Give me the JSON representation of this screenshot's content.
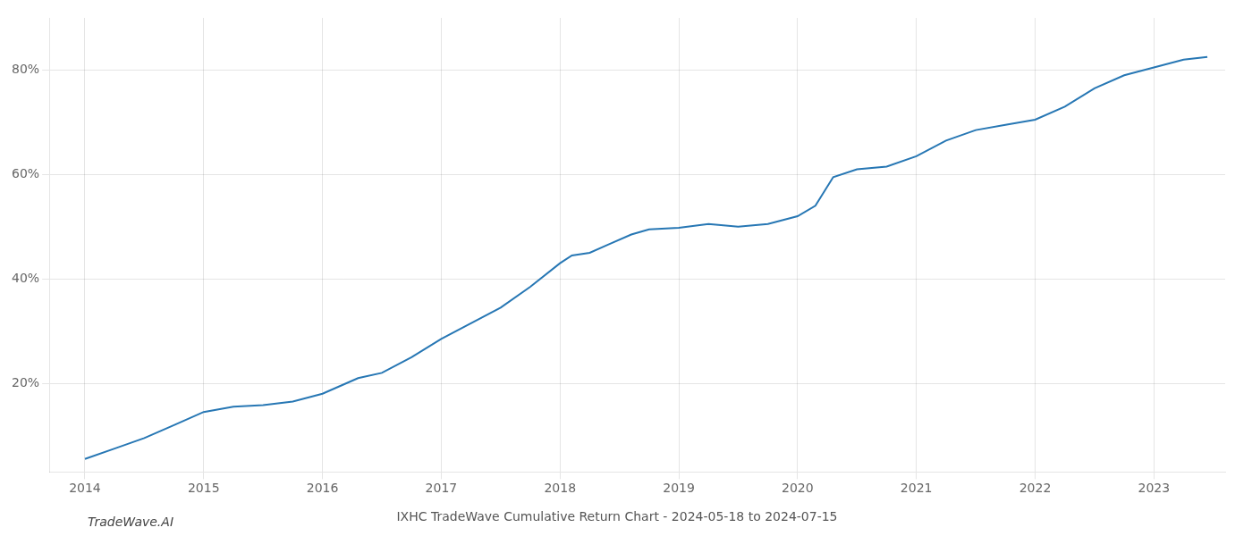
{
  "chart_data": {
    "type": "line",
    "title": "IXHC TradeWave Cumulative Return Chart - 2024-05-18 to 2024-07-15",
    "annotations": [
      "TradeWave.AI"
    ],
    "color": "#2777b4",
    "grid": true,
    "x": [
      2014.0,
      2014.25,
      2014.5,
      2014.75,
      2015.0,
      2015.25,
      2015.5,
      2015.75,
      2016.0,
      2016.15,
      2016.3,
      2016.5,
      2016.75,
      2017.0,
      2017.25,
      2017.5,
      2017.75,
      2018.0,
      2018.1,
      2018.25,
      2018.4,
      2018.6,
      2018.75,
      2019.0,
      2019.25,
      2019.5,
      2019.75,
      2020.0,
      2020.15,
      2020.3,
      2020.5,
      2020.75,
      2021.0,
      2021.25,
      2021.5,
      2021.75,
      2022.0,
      2022.25,
      2022.5,
      2022.75,
      2023.0,
      2023.25,
      2023.45
    ],
    "values": [
      5.5,
      7.5,
      9.5,
      12.0,
      14.5,
      15.5,
      15.8,
      16.5,
      18.0,
      19.5,
      21.0,
      22.0,
      25.0,
      28.5,
      31.5,
      34.5,
      38.5,
      43.0,
      44.5,
      45.0,
      46.5,
      48.5,
      49.5,
      49.8,
      50.5,
      50.0,
      50.5,
      52.0,
      54.0,
      59.5,
      61.0,
      61.5,
      63.5,
      66.5,
      68.5,
      69.5,
      70.5,
      73.0,
      76.5,
      79.0,
      80.5,
      82.0,
      82.5
    ],
    "xlim": [
      2013.7,
      2023.6
    ],
    "ylim": [
      3,
      90
    ],
    "xticks": [
      2014,
      2015,
      2016,
      2017,
      2018,
      2019,
      2020,
      2021,
      2022,
      2023
    ],
    "yticks": [
      {
        "value": 20,
        "label": "20%"
      },
      {
        "value": 40,
        "label": "40%"
      },
      {
        "value": 60,
        "label": "60%"
      },
      {
        "value": 80,
        "label": "80%"
      }
    ]
  }
}
